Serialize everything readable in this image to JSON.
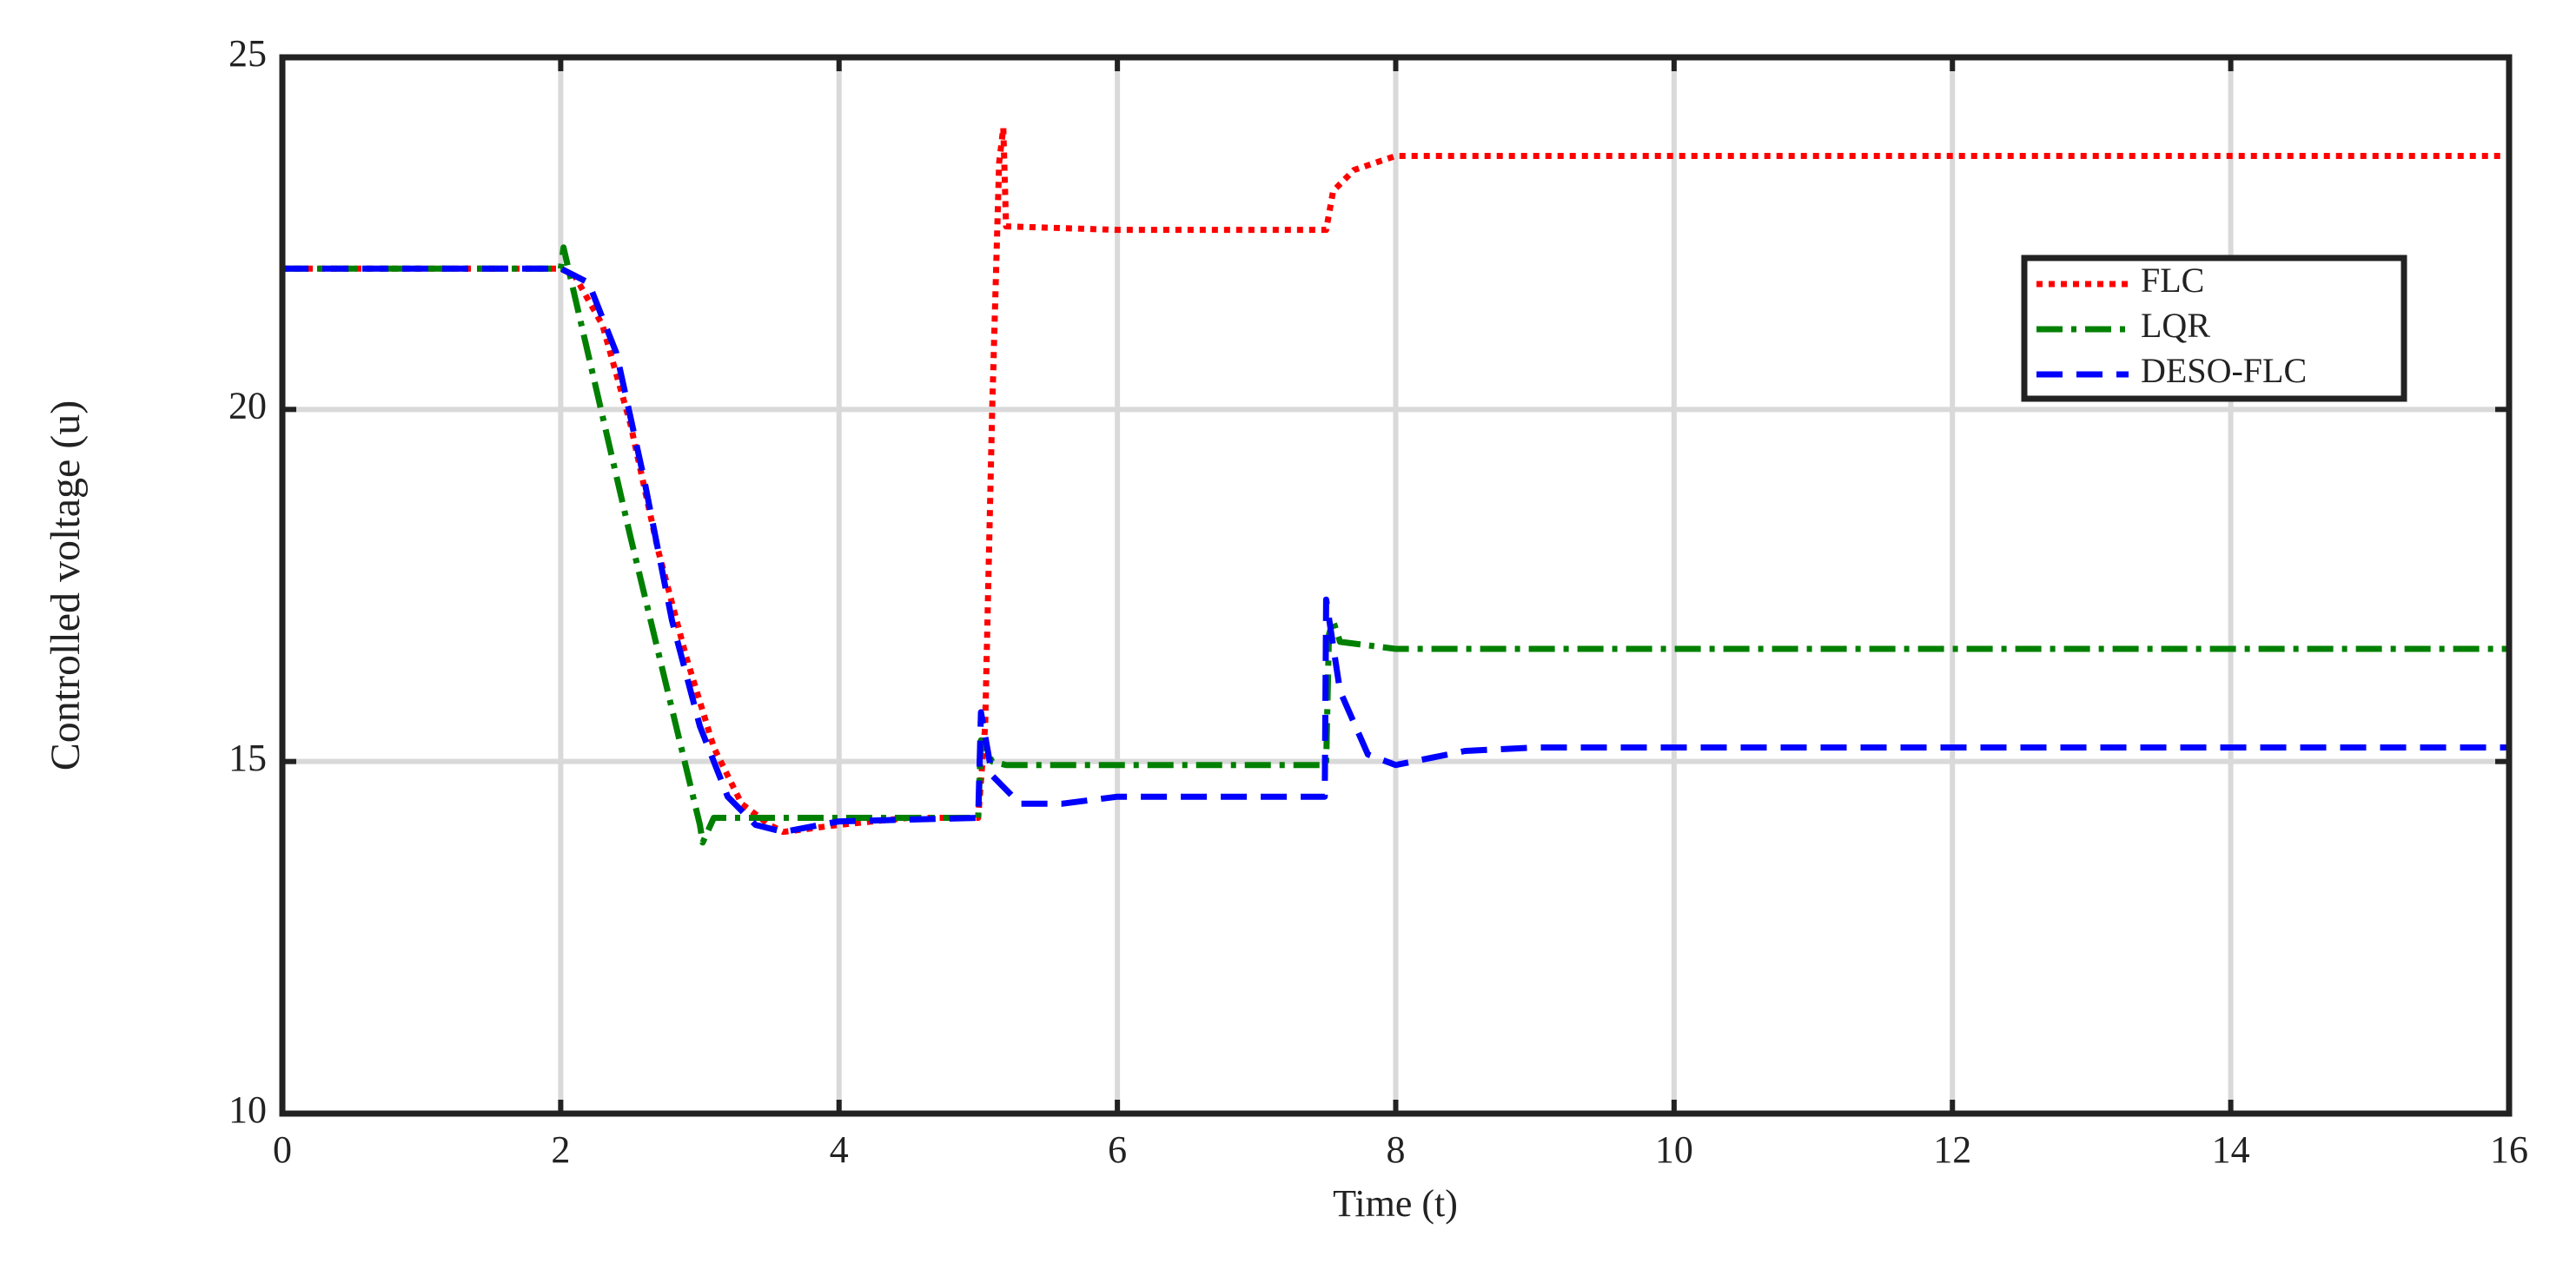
{
  "chart_data": {
    "type": "line",
    "xlabel": "Time (t)",
    "ylabel": "Controlled voltage (u)",
    "xlim": [
      0,
      16
    ],
    "xticks": [
      0,
      2,
      4,
      6,
      8,
      10,
      12,
      14,
      16
    ],
    "ylim": [
      10,
      25
    ],
    "yticks": [
      10,
      15,
      20,
      25
    ],
    "grid": true,
    "legend": "upper right",
    "series": [
      {
        "name": "FLC",
        "color": "#ff0000",
        "style": "dotted",
        "x": [
          0,
          2,
          2.1,
          2.3,
          2.5,
          2.7,
          2.9,
          3.1,
          3.3,
          3.5,
          3.6,
          4,
          4.5,
          5,
          5.05,
          5.1,
          5.15,
          5.18,
          5.2,
          6,
          7.5,
          7.55,
          7.7,
          8,
          16
        ],
        "values": [
          22,
          22,
          21.9,
          21.2,
          19.8,
          18,
          16.5,
          15.2,
          14.4,
          14.1,
          14,
          14.1,
          14.2,
          14.2,
          15.5,
          20,
          23.5,
          24,
          22.6,
          22.55,
          22.55,
          23.1,
          23.4,
          23.6,
          23.6
        ]
      },
      {
        "name": "LQR",
        "color": "#008000",
        "style": "dashdot",
        "x": [
          0,
          2,
          2.02,
          2.5,
          3,
          3.02,
          3.1,
          5,
          5.02,
          5.1,
          5.2,
          7.5,
          7.52,
          7.55,
          7.6,
          8,
          16
        ],
        "values": [
          22,
          22,
          22.3,
          18.2,
          14.1,
          13.85,
          14.2,
          14.2,
          15.3,
          15,
          14.95,
          14.95,
          16.8,
          17,
          16.7,
          16.6,
          16.6
        ]
      },
      {
        "name": "DESO-FLC",
        "color": "#0000ff",
        "style": "dashed",
        "x": [
          0,
          2,
          2.2,
          2.4,
          2.6,
          2.8,
          3,
          3.2,
          3.4,
          3.6,
          4,
          5,
          5.02,
          5.1,
          5.3,
          5.6,
          6,
          7.49,
          7.5,
          7.6,
          7.8,
          8,
          8.5,
          9,
          16
        ],
        "values": [
          22,
          22,
          21.8,
          20.8,
          19,
          17,
          15.5,
          14.5,
          14.1,
          14,
          14.15,
          14.2,
          15.7,
          14.8,
          14.4,
          14.4,
          14.5,
          14.5,
          17.3,
          16,
          15.1,
          14.95,
          15.15,
          15.2,
          15.2
        ]
      }
    ]
  }
}
